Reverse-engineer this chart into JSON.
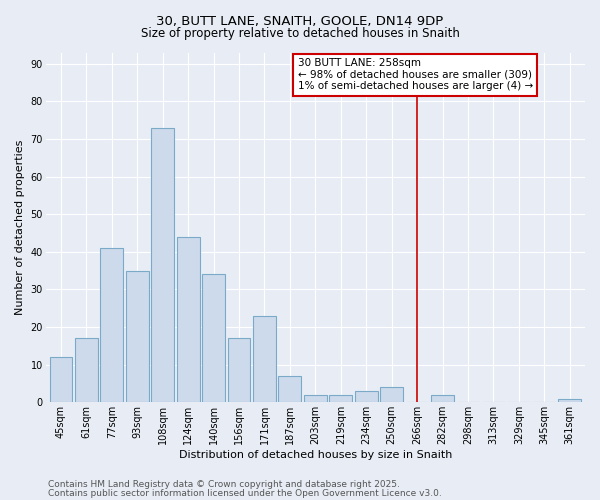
{
  "title1": "30, BUTT LANE, SNAITH, GOOLE, DN14 9DP",
  "title2": "Size of property relative to detached houses in Snaith",
  "xlabel": "Distribution of detached houses by size in Snaith",
  "ylabel": "Number of detached properties",
  "categories": [
    "45sqm",
    "61sqm",
    "77sqm",
    "93sqm",
    "108sqm",
    "124sqm",
    "140sqm",
    "156sqm",
    "171sqm",
    "187sqm",
    "203sqm",
    "219sqm",
    "234sqm",
    "250sqm",
    "266sqm",
    "282sqm",
    "298sqm",
    "313sqm",
    "329sqm",
    "345sqm",
    "361sqm"
  ],
  "values": [
    12,
    17,
    41,
    35,
    73,
    44,
    34,
    17,
    23,
    7,
    2,
    2,
    3,
    4,
    0,
    2,
    0,
    0,
    0,
    0,
    1
  ],
  "bar_color": "#ccdaeb",
  "bar_edge_color": "#7aaac8",
  "background_color": "#e8edf5",
  "grid_color": "#ffffff",
  "vline_color": "#cc0000",
  "vline_x_index": 14,
  "annotation_line1": "30 BUTT LANE: 258sqm",
  "annotation_line2": "← 98% of detached houses are smaller (309)",
  "annotation_line3": "1% of semi-detached houses are larger (4) →",
  "annotation_box_color": "#ffffff",
  "annotation_box_edge_color": "#cc0000",
  "ylim": [
    0,
    93
  ],
  "yticks": [
    0,
    10,
    20,
    30,
    40,
    50,
    60,
    70,
    80,
    90
  ],
  "footer_line1": "Contains HM Land Registry data © Crown copyright and database right 2025.",
  "footer_line2": "Contains public sector information licensed under the Open Government Licence v3.0.",
  "title_fontsize": 9.5,
  "subtitle_fontsize": 8.5,
  "axis_label_fontsize": 8,
  "tick_fontsize": 7,
  "annotation_fontsize": 7.5,
  "footer_fontsize": 6.5
}
